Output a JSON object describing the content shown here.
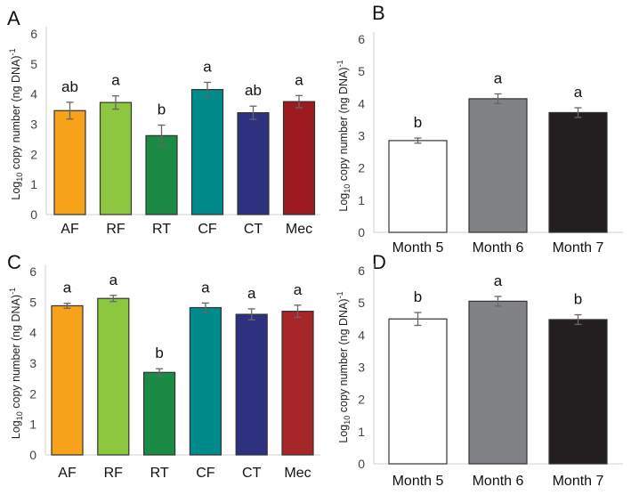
{
  "chart_data": [
    {
      "panel": "A",
      "type": "bar",
      "categories": [
        "AF",
        "RF",
        "RT",
        "CF",
        "CT",
        "Mec"
      ],
      "values": [
        3.45,
        3.72,
        2.62,
        4.15,
        3.38,
        3.75
      ],
      "errors": [
        0.28,
        0.22,
        0.35,
        0.24,
        0.22,
        0.2
      ],
      "labels": [
        "ab",
        "a",
        "b",
        "a",
        "ab",
        "a"
      ],
      "colors": [
        "#f7a21b",
        "#8dc63f",
        "#1b8a45",
        "#008b8b",
        "#2e3180",
        "#9b1b20"
      ],
      "ylabel_main": "Log",
      "ylabel_sub": "10",
      "ylabel_rest": " copy number (ng DNA)",
      "ylabel_sup": "-1",
      "ylim": [
        0,
        6
      ],
      "yticks": [
        "0",
        "1",
        "2",
        "3",
        "4",
        "5",
        "6"
      ]
    },
    {
      "panel": "B",
      "type": "bar",
      "categories": [
        "Month 5",
        "Month 6",
        "Month 7"
      ],
      "values": [
        2.85,
        4.15,
        3.72
      ],
      "errors": [
        0.08,
        0.15,
        0.15
      ],
      "labels": [
        "b",
        "a",
        "a"
      ],
      "colors": [
        "#ffffff",
        "#808285",
        "#231f20"
      ],
      "ylabel_main": "Log",
      "ylabel_sub": "10",
      "ylabel_rest": " copy number (ng DNA)",
      "ylabel_sup": "-1",
      "ylim": [
        0,
        6
      ],
      "yticks": [
        "0",
        "1",
        "2",
        "3",
        "4",
        "5",
        "6"
      ]
    },
    {
      "panel": "C",
      "type": "bar",
      "categories": [
        "AF",
        "RF",
        "RT",
        "CF",
        "CT",
        "Mec"
      ],
      "values": [
        4.88,
        5.12,
        2.7,
        4.82,
        4.6,
        4.7
      ],
      "errors": [
        0.08,
        0.1,
        0.12,
        0.15,
        0.18,
        0.2
      ],
      "labels": [
        "a",
        "a",
        "b",
        "a",
        "a",
        "a"
      ],
      "colors": [
        "#f7a21b",
        "#8dc63f",
        "#1b8a45",
        "#008b8b",
        "#2e3180",
        "#a6262a"
      ],
      "ylabel_main": "Log",
      "ylabel_sub": "10",
      "ylabel_rest": " copy number (ng DNA)",
      "ylabel_sup": "-1",
      "ylim": [
        0,
        6
      ],
      "yticks": [
        "0",
        "1",
        "2",
        "3",
        "4",
        "5",
        "6"
      ]
    },
    {
      "panel": "D",
      "type": "bar",
      "categories": [
        "Month 5",
        "Month 6",
        "Month 7"
      ],
      "values": [
        4.5,
        5.05,
        4.48
      ],
      "errors": [
        0.2,
        0.15,
        0.15
      ],
      "labels": [
        "b",
        "a",
        "b"
      ],
      "colors": [
        "#ffffff",
        "#808285",
        "#231f20"
      ],
      "ylabel_main": "Log",
      "ylabel_sub": "10",
      "ylabel_rest": " copy number (ng DNA)",
      "ylabel_sup": "-1",
      "ylim": [
        0,
        6
      ],
      "yticks": [
        "0",
        "1",
        "2",
        "3",
        "4",
        "5",
        "6"
      ]
    }
  ]
}
